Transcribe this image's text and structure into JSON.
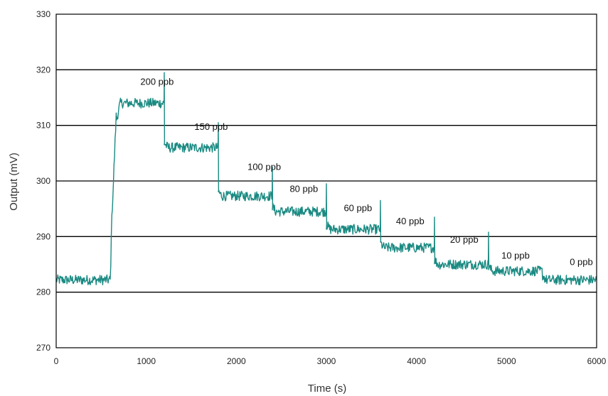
{
  "chart_data": {
    "type": "line",
    "xlabel": "Time (s)",
    "ylabel": "Output (mV)",
    "xlim": [
      0,
      6000
    ],
    "ylim": [
      270,
      330
    ],
    "x_ticks": [
      "0",
      "1000",
      "2000",
      "3000",
      "4000",
      "5000",
      "6000"
    ],
    "y_ticks": [
      "270",
      "280",
      "290",
      "300",
      "310",
      "320",
      "330"
    ],
    "grid": "horizontal",
    "line_color": "#1a8a82",
    "segments": [
      {
        "label": "",
        "x": [
          0,
          600
        ],
        "level": 282.2
      },
      {
        "label": "200 ppb",
        "x": [
          600,
          1200
        ],
        "level": 314.0
      },
      {
        "label": "150 ppb",
        "x": [
          1200,
          1800
        ],
        "level": 306.0
      },
      {
        "label": "100 ppb",
        "x": [
          1800,
          2400
        ],
        "level": 297.3
      },
      {
        "label": "80 ppb",
        "x": [
          2400,
          3000
        ],
        "level": 294.5
      },
      {
        "label": "60 ppb",
        "x": [
          3000,
          3600
        ],
        "level": 291.3
      },
      {
        "label": "40 ppb",
        "x": [
          3600,
          4200
        ],
        "level": 288.0
      },
      {
        "label": "20 ppb",
        "x": [
          4200,
          4800
        ],
        "level": 285.0
      },
      {
        "label": "10 ppb",
        "x": [
          4800,
          5400
        ],
        "level": 283.8
      },
      {
        "label": "0 ppb",
        "x": [
          5400,
          6000
        ],
        "level": 282.2
      }
    ],
    "spikes": [
      {
        "x": 1200,
        "peak": 319.5
      },
      {
        "x": 1800,
        "peak": 310.5
      },
      {
        "x": 2400,
        "peak": 302.5
      },
      {
        "x": 3000,
        "peak": 299.5
      },
      {
        "x": 3600,
        "peak": 296.5
      },
      {
        "x": 4200,
        "peak": 293.5
      },
      {
        "x": 4800,
        "peak": 290.8
      }
    ],
    "annotations": [
      {
        "text": "200 ppb",
        "x": 1120,
        "y": 317.3
      },
      {
        "text": "150 ppb",
        "x": 1720,
        "y": 309.2
      },
      {
        "text": "100 ppb",
        "x": 2310,
        "y": 302.0
      },
      {
        "text": "80 ppb",
        "x": 2750,
        "y": 298.0
      },
      {
        "text": "60 ppb",
        "x": 3350,
        "y": 294.6
      },
      {
        "text": "40 ppb",
        "x": 3930,
        "y": 292.2
      },
      {
        "text": "20 ppb",
        "x": 4530,
        "y": 288.9
      },
      {
        "text": "10 ppb",
        "x": 5100,
        "y": 286.0
      },
      {
        "text": "0 ppb",
        "x": 5830,
        "y": 284.9
      }
    ]
  }
}
